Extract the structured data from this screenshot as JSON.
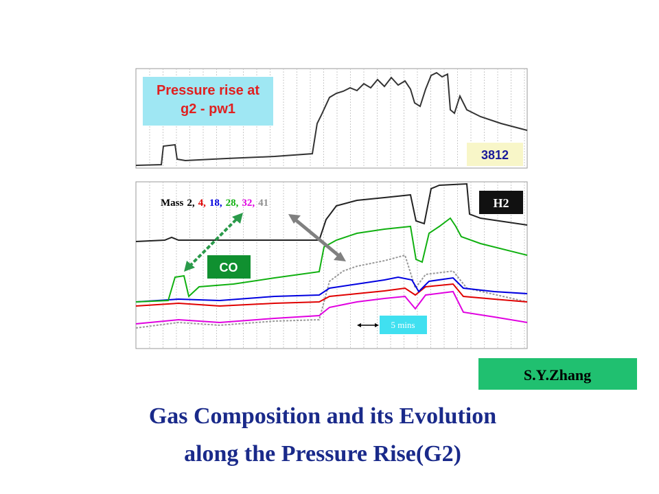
{
  "upper_panel": {
    "caption": [
      "Pressure rise at",
      "g2 - pw1"
    ],
    "badge": "3812"
  },
  "lower_panel": {
    "legend": {
      "label": "Mass",
      "items": [
        {
          "text": "2,",
          "color": "#000000"
        },
        {
          "text": "4,",
          "color": "#e00000"
        },
        {
          "text": "18,",
          "color": "#0000e0"
        },
        {
          "text": "28,",
          "color": "#10b010"
        },
        {
          "text": "32,",
          "color": "#e000e0"
        },
        {
          "text": "41",
          "color": "#909090"
        }
      ]
    },
    "labels": {
      "h2": "H2",
      "co": "CO",
      "interval": "5 mins"
    }
  },
  "author": "S.Y.Zhang",
  "title": [
    "Gas Composition and its Evolution",
    "along the Pressure Rise(G2)"
  ]
}
